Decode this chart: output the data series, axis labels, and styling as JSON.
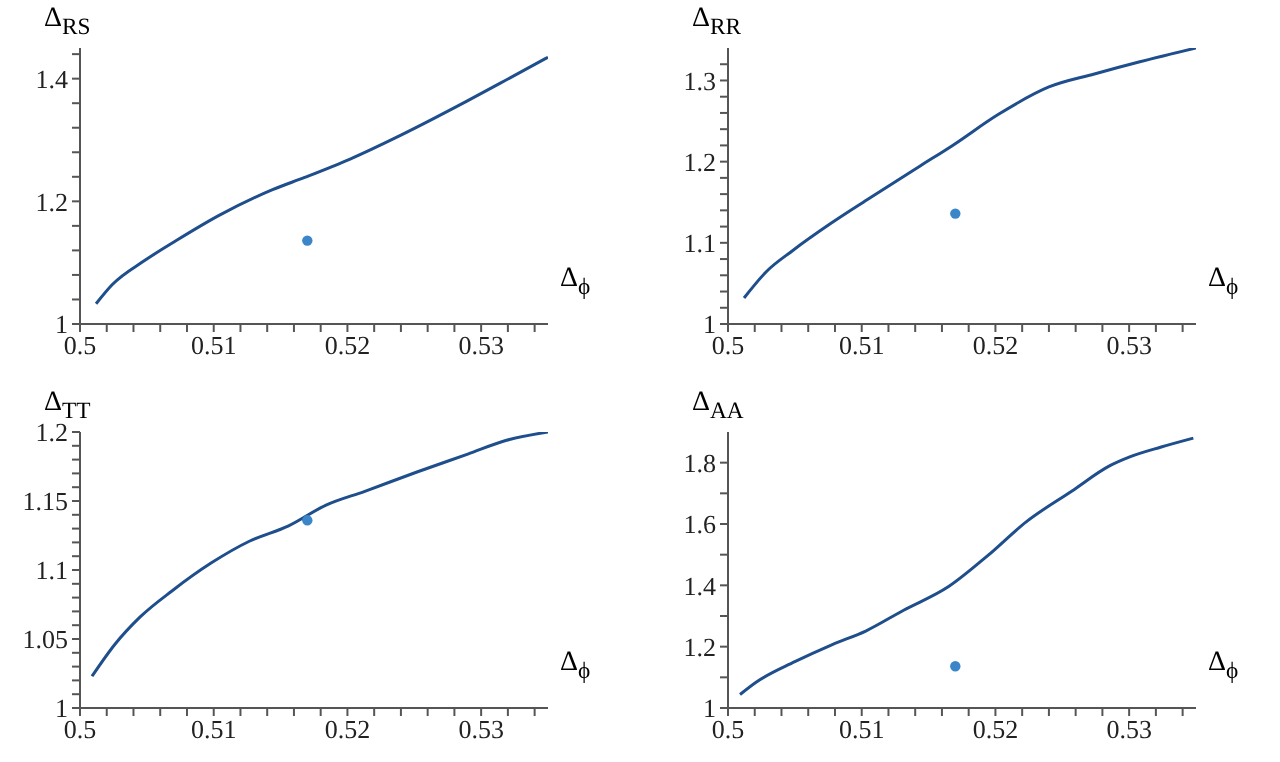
{
  "chart_data": [
    {
      "type": "line",
      "ylabel": "Δ$_{RS}$",
      "xlabel": "Δ$_{ϕ}$",
      "xlim": [
        0.5,
        0.535
      ],
      "ylim": [
        1,
        1.45
      ],
      "xticks": [
        0.5,
        {
          "value": 0.502,
          "label": null
        },
        {
          "value": 0.504,
          "label": null
        },
        {
          "value": 0.506,
          "label": null
        },
        {
          "value": 0.508,
          "label": null
        },
        0.51,
        {
          "value": 0.512,
          "label": null
        },
        {
          "value": 0.514,
          "label": null
        },
        {
          "value": 0.516,
          "label": null
        },
        {
          "value": 0.518,
          "label": null
        },
        0.52,
        {
          "value": 0.522,
          "label": null
        },
        {
          "value": 0.524,
          "label": null
        },
        {
          "value": 0.526,
          "label": null
        },
        {
          "value": 0.528,
          "label": null
        },
        0.53,
        {
          "value": 0.532,
          "label": null
        },
        {
          "value": 0.534,
          "label": null
        }
      ],
      "yticks": [
        1,
        {
          "value": 1.04,
          "label": null
        },
        {
          "value": 1.08,
          "label": null
        },
        {
          "value": 1.12,
          "label": null
        },
        {
          "value": 1.16,
          "label": null
        },
        1.2,
        {
          "value": 1.24,
          "label": null
        },
        {
          "value": 1.28,
          "label": null
        },
        {
          "value": 1.32,
          "label": null
        },
        {
          "value": 1.36,
          "label": null
        },
        1.4,
        {
          "value": 1.44,
          "label": null
        }
      ],
      "series": [
        {
          "type": "line",
          "color": "#1f4e8c",
          "x": [
            0.5012,
            0.5024,
            0.5048,
            0.5072,
            0.5104,
            0.5144,
            0.5168,
            0.5202,
            0.524,
            0.5289,
            0.5318,
            0.535
          ],
          "values": [
            1.033,
            1.064,
            1.103,
            1.136,
            1.177,
            1.219,
            1.239,
            1.269,
            1.308,
            1.363,
            1.397,
            1.435
          ]
        },
        {
          "type": "scatter",
          "marker": "circle",
          "color": "#3a86c8",
          "x": [
            0.517
          ],
          "values": [
            1.136
          ]
        }
      ]
    },
    {
      "type": "line",
      "ylabel": "Δ$_{RR}$",
      "xlabel": "Δ$_{ϕ}$",
      "xlim": [
        0.5,
        0.535
      ],
      "ylim": [
        1,
        1.34
      ],
      "xticks": [
        0.5,
        {
          "value": 0.502,
          "label": null
        },
        {
          "value": 0.504,
          "label": null
        },
        {
          "value": 0.506,
          "label": null
        },
        {
          "value": 0.508,
          "label": null
        },
        0.51,
        {
          "value": 0.512,
          "label": null
        },
        {
          "value": 0.514,
          "label": null
        },
        {
          "value": 0.516,
          "label": null
        },
        {
          "value": 0.518,
          "label": null
        },
        0.52,
        {
          "value": 0.522,
          "label": null
        },
        {
          "value": 0.524,
          "label": null
        },
        {
          "value": 0.526,
          "label": null
        },
        {
          "value": 0.528,
          "label": null
        },
        0.53,
        {
          "value": 0.532,
          "label": null
        },
        {
          "value": 0.534,
          "label": null
        }
      ],
      "yticks": [
        1,
        {
          "value": 1.02,
          "label": null
        },
        {
          "value": 1.04,
          "label": null
        },
        {
          "value": 1.06,
          "label": null
        },
        {
          "value": 1.08,
          "label": null
        },
        1.1,
        {
          "value": 1.12,
          "label": null
        },
        {
          "value": 1.14,
          "label": null
        },
        {
          "value": 1.16,
          "label": null
        },
        {
          "value": 1.18,
          "label": null
        },
        1.2,
        {
          "value": 1.22,
          "label": null
        },
        {
          "value": 1.24,
          "label": null
        },
        {
          "value": 1.26,
          "label": null
        },
        {
          "value": 1.28,
          "label": null
        },
        1.3,
        {
          "value": 1.32,
          "label": null
        }
      ],
      "series": [
        {
          "type": "line",
          "color": "#1f4e8c",
          "x": [
            0.5012,
            0.5029,
            0.5048,
            0.5077,
            0.5104,
            0.5144,
            0.5168,
            0.5202,
            0.524,
            0.5274,
            0.5308,
            0.535
          ],
          "values": [
            1.032,
            1.065,
            1.09,
            1.124,
            1.153,
            1.195,
            1.22,
            1.258,
            1.292,
            1.308,
            1.323,
            1.34
          ]
        },
        {
          "type": "scatter",
          "marker": "circle",
          "color": "#3a86c8",
          "x": [
            0.517
          ],
          "values": [
            1.136
          ]
        }
      ]
    },
    {
      "type": "line",
      "ylabel": "Δ$_{TT}$",
      "xlabel": "Δ$_{ϕ}$",
      "xlim": [
        0.5,
        0.535
      ],
      "ylim": [
        1,
        1.2
      ],
      "xticks": [
        0.5,
        {
          "value": 0.502,
          "label": null
        },
        {
          "value": 0.504,
          "label": null
        },
        {
          "value": 0.506,
          "label": null
        },
        {
          "value": 0.508,
          "label": null
        },
        0.51,
        {
          "value": 0.512,
          "label": null
        },
        {
          "value": 0.514,
          "label": null
        },
        {
          "value": 0.516,
          "label": null
        },
        {
          "value": 0.518,
          "label": null
        },
        0.52,
        {
          "value": 0.522,
          "label": null
        },
        {
          "value": 0.524,
          "label": null
        },
        {
          "value": 0.526,
          "label": null
        },
        {
          "value": 0.528,
          "label": null
        },
        0.53,
        {
          "value": 0.532,
          "label": null
        },
        {
          "value": 0.534,
          "label": null
        }
      ],
      "yticks": [
        1,
        {
          "value": 1.01,
          "label": null
        },
        {
          "value": 1.02,
          "label": null
        },
        {
          "value": 1.03,
          "label": null
        },
        {
          "value": 1.04,
          "label": null
        },
        1.05,
        {
          "value": 1.06,
          "label": null
        },
        {
          "value": 1.07,
          "label": null
        },
        {
          "value": 1.08,
          "label": null
        },
        {
          "value": 1.09,
          "label": null
        },
        1.1,
        {
          "value": 1.11,
          "label": null
        },
        {
          "value": 1.12,
          "label": null
        },
        {
          "value": 1.13,
          "label": null
        },
        {
          "value": 1.14,
          "label": null
        },
        1.15,
        {
          "value": 1.16,
          "label": null
        },
        {
          "value": 1.17,
          "label": null
        },
        {
          "value": 1.18,
          "label": null
        },
        {
          "value": 1.19,
          "label": null
        },
        1.2
      ],
      "series": [
        {
          "type": "line",
          "color": "#1f4e8c",
          "x": [
            0.5009,
            0.5026,
            0.5045,
            0.5069,
            0.5098,
            0.5127,
            0.5156,
            0.5184,
            0.5213,
            0.5252,
            0.529,
            0.5319,
            0.535
          ],
          "values": [
            1.023,
            1.046,
            1.066,
            1.085,
            1.105,
            1.121,
            1.132,
            1.147,
            1.157,
            1.171,
            1.184,
            1.194,
            1.2
          ]
        },
        {
          "type": "scatter",
          "marker": "circle",
          "color": "#3a86c8",
          "x": [
            0.517
          ],
          "values": [
            1.136
          ]
        }
      ]
    },
    {
      "type": "line",
      "ylabel": "Δ$_{AA}$",
      "xlabel": "Δ$_{ϕ}$",
      "xlim": [
        0.5,
        0.535
      ],
      "ylim": [
        1,
        1.9
      ],
      "xticks": [
        0.5,
        {
          "value": 0.502,
          "label": null
        },
        {
          "value": 0.504,
          "label": null
        },
        {
          "value": 0.506,
          "label": null
        },
        {
          "value": 0.508,
          "label": null
        },
        0.51,
        {
          "value": 0.512,
          "label": null
        },
        {
          "value": 0.514,
          "label": null
        },
        {
          "value": 0.516,
          "label": null
        },
        {
          "value": 0.518,
          "label": null
        },
        0.52,
        {
          "value": 0.522,
          "label": null
        },
        {
          "value": 0.524,
          "label": null
        },
        {
          "value": 0.526,
          "label": null
        },
        {
          "value": 0.528,
          "label": null
        },
        0.53,
        {
          "value": 0.532,
          "label": null
        },
        {
          "value": 0.534,
          "label": null
        }
      ],
      "yticks": [
        1,
        {
          "value": 1.1,
          "label": null
        },
        1.2,
        {
          "value": 1.3,
          "label": null
        },
        1.4,
        {
          "value": 1.5,
          "label": null
        },
        1.6,
        {
          "value": 1.7,
          "label": null
        },
        1.8
      ],
      "series": [
        {
          "type": "line",
          "color": "#1f4e8c",
          "x": [
            0.5009,
            0.5021,
            0.505,
            0.5078,
            0.5103,
            0.5131,
            0.5165,
            0.5194,
            0.5223,
            0.5257,
            0.5286,
            0.53,
            0.5324,
            0.5348
          ],
          "values": [
            1.044,
            1.084,
            1.151,
            1.207,
            1.251,
            1.318,
            1.396,
            1.496,
            1.607,
            1.707,
            1.791,
            1.818,
            1.851,
            1.88
          ]
        },
        {
          "type": "scatter",
          "marker": "circle",
          "color": "#3a86c8",
          "x": [
            0.517
          ],
          "values": [
            1.136
          ]
        }
      ]
    }
  ]
}
